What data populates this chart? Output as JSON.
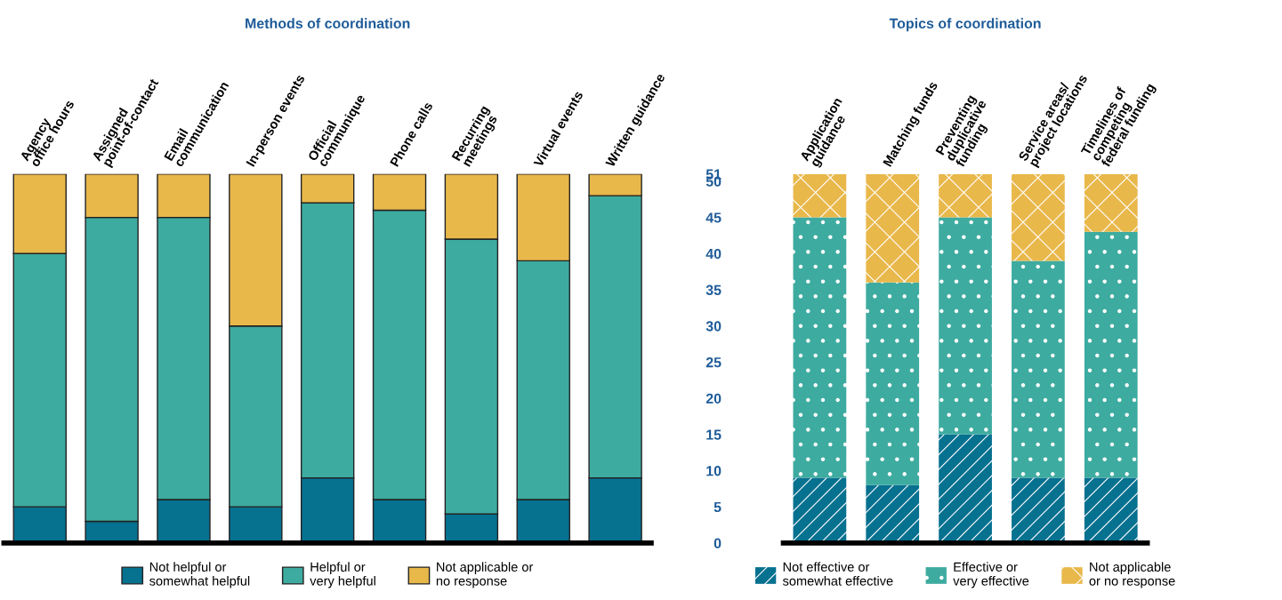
{
  "chart_data": [
    {
      "type": "bar",
      "stacked": true,
      "title": "Methods of coordination",
      "categories": [
        "Agency\noffice hours",
        "Assigned\npoint-of-contact",
        "Email\ncommunication",
        "In-person events",
        "Official\ncommunique",
        "Phone calls",
        "Recurring\nmeetings",
        "Virtual events",
        "Written guidance"
      ],
      "series": [
        {
          "name": "Not helpful or\nsomewhat helpful",
          "color": "#077190",
          "values": [
            5,
            3,
            6,
            5,
            9,
            6,
            4,
            6,
            9
          ]
        },
        {
          "name": "Helpful or\nvery helpful",
          "color": "#3eaba0",
          "values": [
            35,
            42,
            39,
            25,
            38,
            40,
            38,
            33,
            39
          ]
        },
        {
          "name": "Not applicable or\nno response",
          "color": "#e9b84b",
          "values": [
            11,
            6,
            6,
            21,
            4,
            5,
            9,
            12,
            3
          ]
        }
      ],
      "ylim": [
        0,
        51
      ],
      "yticks": [
        0,
        5,
        10,
        15,
        20,
        25,
        30,
        35,
        40,
        45,
        50,
        51
      ],
      "tick_labels": "x",
      "legend": "bottom",
      "grid": false
    },
    {
      "type": "bar",
      "stacked": true,
      "title": "Topics of coordination",
      "categories": [
        "Application\nguidance",
        "Matching funds",
        "Preventing\nduplicative\nfunding",
        "Service areas/\nproject locations",
        "Timelines of\ncompeting\nfederal funding"
      ],
      "series": [
        {
          "name": "Not effective or\nsomewhat effective",
          "color": "#077190",
          "values": [
            9,
            8,
            15,
            9,
            9
          ]
        },
        {
          "name": "Effective or\nvery effective",
          "color": "#3eaba0",
          "values": [
            36,
            28,
            30,
            30,
            34
          ]
        },
        {
          "name": "Not applicable\nor no response",
          "color": "#e9b84b",
          "values": [
            6,
            15,
            6,
            12,
            8
          ]
        }
      ],
      "ylim": [
        0,
        51
      ],
      "yticks": [
        0,
        5,
        10,
        15,
        20,
        25,
        30,
        35,
        40,
        45,
        50,
        51
      ],
      "legend": "bottom",
      "grid": false
    }
  ]
}
